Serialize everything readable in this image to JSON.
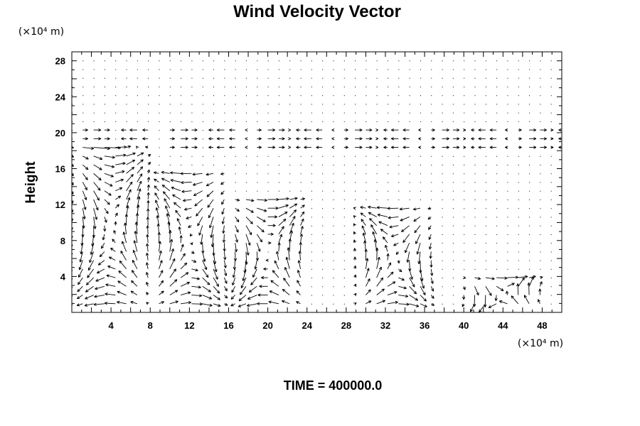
{
  "chart_data": {
    "type": "vector_field",
    "title": "Wind Velocity Vector",
    "ylabel": "Height",
    "xlabel": "",
    "y_unit_label": "(×10⁴ m)",
    "x_unit_label": "(×10⁴ m)",
    "footer": "TIME = 400000.0",
    "xlim": [
      0,
      50
    ],
    "ylim": [
      0,
      29
    ],
    "x_ticks": [
      "4",
      "8",
      "12",
      "16",
      "20",
      "24",
      "28",
      "32",
      "36",
      "40",
      "44",
      "48"
    ],
    "y_ticks": [
      "4",
      "8",
      "12",
      "16",
      "20",
      "24",
      "28"
    ],
    "grid": false,
    "vector_color": "#000000",
    "circulation_cells": [
      {
        "x_center": 4,
        "z_top": 19
      },
      {
        "x_center": 12,
        "z_top": 16
      },
      {
        "x_center": 20,
        "z_top": 13
      },
      {
        "x_center": 33,
        "z_top": 12
      },
      {
        "x_center": 44,
        "z_top": 4
      }
    ]
  }
}
